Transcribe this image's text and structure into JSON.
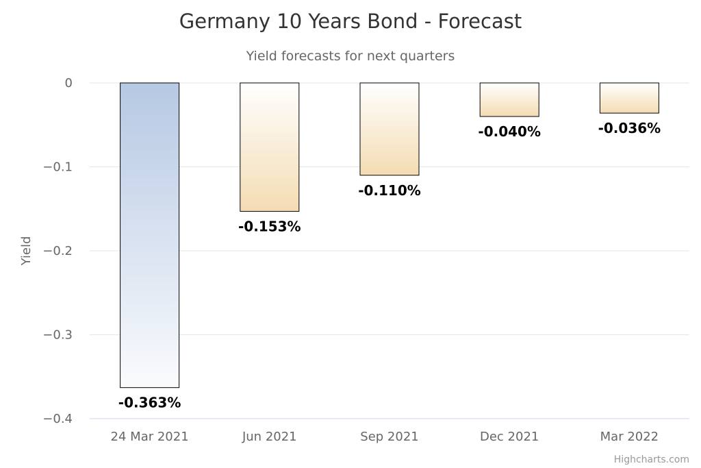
{
  "chart_data": {
    "type": "bar",
    "title": "Germany 10 Years Bond - Forecast",
    "subtitle": "Yield forecasts for next quarters",
    "xlabel": "",
    "ylabel": "Yield",
    "categories": [
      "24 Mar 2021",
      "Jun 2021",
      "Sep 2021",
      "Dec 2021",
      "Mar 2022"
    ],
    "values": [
      -0.363,
      -0.153,
      -0.11,
      -0.04,
      -0.036
    ],
    "data_labels": [
      "-0.363%",
      "-0.153%",
      "-0.110%",
      "-0.040%",
      "-0.036%"
    ],
    "ylim": [
      -0.4,
      0
    ],
    "yticks": [
      0,
      -0.1,
      -0.2,
      -0.3,
      -0.4
    ],
    "ytick_labels": [
      "0",
      "−0.1",
      "−0.2",
      "−0.3",
      "−0.4"
    ],
    "grid": true,
    "legend": "none",
    "colors": {
      "current_bar_top": "#b6c8e3",
      "current_bar_bottom": "#fafbfd",
      "forecast_bar_top": "#ffffff",
      "forecast_bar_bottom": "#f4dcb3",
      "bar_border": "#000000",
      "gridline": "#e6e6e6",
      "axis_line": "#ccd6eb"
    }
  },
  "credits": "Highcharts.com"
}
